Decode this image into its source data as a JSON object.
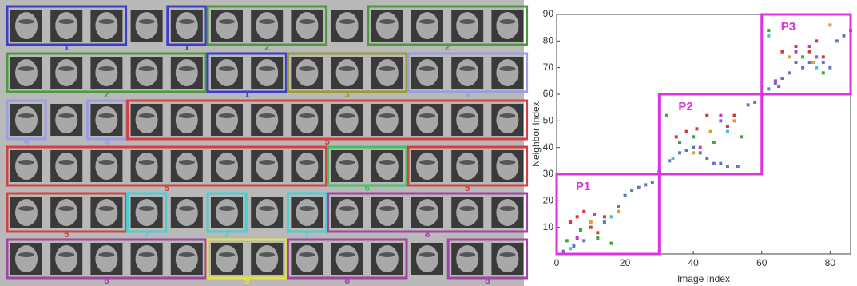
{
  "panel_a": {
    "rows": [
      [
        {
          "size": 3,
          "label": "1",
          "color": "#3d3dcc"
        },
        {
          "size": 1
        },
        {
          "size": 1,
          "label": "1",
          "color": "#3d3dcc"
        },
        {
          "size": 3,
          "label": "2",
          "color": "#4c9a3c"
        },
        {
          "size": 1
        },
        {
          "size": 4,
          "label": "2",
          "color": "#4c9a3c"
        }
      ],
      [
        {
          "size": 5,
          "label": "2",
          "color": "#4c9a3c"
        },
        {
          "size": 2,
          "label": "1",
          "color": "#3d3dcc"
        },
        {
          "size": 3,
          "label": "3",
          "color": "#9c9a32"
        },
        {
          "size": 3,
          "label": "4",
          "color": "#9c9ce2"
        }
      ],
      [
        {
          "size": 1,
          "label": "4",
          "color": "#9c9ce2"
        },
        {
          "size": 1
        },
        {
          "size": 1,
          "label": "4",
          "color": "#9c9ce2"
        },
        {
          "size": 10,
          "label": "5",
          "color": "#d24242"
        }
      ],
      [
        {
          "size": 8,
          "label": "5",
          "color": "#d24242"
        },
        {
          "size": 2,
          "label": "6",
          "color": "#44c262"
        },
        {
          "size": 3,
          "label": "5",
          "color": "#d24242"
        }
      ],
      [
        {
          "size": 3,
          "label": "5",
          "color": "#d24242"
        },
        {
          "size": 1,
          "label": "7",
          "color": "#44d2d2"
        },
        {
          "size": 1
        },
        {
          "size": 1,
          "label": "7",
          "color": "#44d2d2"
        },
        {
          "size": 1
        },
        {
          "size": 1,
          "label": "7",
          "color": "#44d2d2"
        },
        {
          "size": 5,
          "label": "8",
          "color": "#a244a2"
        }
      ],
      [
        {
          "size": 5,
          "label": "8",
          "color": "#a244a2"
        },
        {
          "size": 2,
          "label": "9",
          "color": "#e2e244"
        },
        {
          "size": 3,
          "label": "8",
          "color": "#a244a2"
        },
        {
          "size": 1
        },
        {
          "size": 2,
          "label": "8",
          "color": "#a244a2"
        }
      ]
    ]
  },
  "chart_data": {
    "type": "scatter",
    "x_label": "Image Index",
    "y_label": "Neighbor Index",
    "xlim": [
      0,
      86
    ],
    "ylim": [
      0,
      90
    ],
    "xticks": [
      0,
      20,
      40,
      60,
      80
    ],
    "yticks": [
      10,
      20,
      30,
      40,
      50,
      60,
      70,
      80,
      90
    ],
    "region_color": "#e033e0",
    "regions": [
      {
        "label": "P1",
        "x": [
          0,
          30
        ],
        "y": [
          0,
          30
        ]
      },
      {
        "label": "P2",
        "x": [
          30,
          60
        ],
        "y": [
          30,
          60
        ]
      },
      {
        "label": "P3",
        "x": [
          60,
          86
        ],
        "y": [
          60,
          90
        ]
      }
    ],
    "series": [
      {
        "color": "#5a7ac8",
        "x": [
          2,
          5,
          8,
          14,
          18,
          20,
          22,
          24,
          26,
          28,
          30,
          33,
          36,
          38,
          40,
          42,
          44,
          46,
          48,
          50,
          53,
          56,
          58,
          60,
          62,
          64,
          66,
          68,
          70,
          72,
          74,
          76,
          78,
          80,
          82,
          84,
          86,
          48,
          52
        ],
        "values": [
          1,
          3,
          5,
          12,
          18,
          22,
          24,
          25,
          26,
          27,
          31,
          35,
          38,
          39,
          40,
          38,
          36,
          34,
          34,
          33,
          33,
          56,
          57,
          60,
          62,
          64,
          66,
          68,
          72,
          70,
          72,
          74,
          72,
          70,
          80,
          82,
          84,
          50,
          52
        ]
      },
      {
        "color": "#d83a3a",
        "x": [
          4,
          6,
          8,
          10,
          12,
          14,
          35,
          38,
          41,
          44,
          50,
          52,
          66,
          70,
          74,
          76,
          78
        ],
        "values": [
          12,
          14,
          16,
          10,
          8,
          14,
          44,
          46,
          47,
          52,
          48,
          52,
          76,
          78,
          76,
          80,
          74
        ]
      },
      {
        "color": "#3aa83a",
        "x": [
          3,
          7,
          12,
          16,
          32,
          36,
          40,
          46,
          54,
          62,
          72,
          78
        ],
        "values": [
          5,
          9,
          6,
          4,
          52,
          42,
          44,
          42,
          44,
          84,
          74,
          68
        ]
      },
      {
        "color": "#e89a2a",
        "x": [
          10,
          18,
          40,
          45,
          52,
          68,
          75,
          80
        ],
        "values": [
          12,
          16,
          38,
          46,
          50,
          74,
          72,
          86
        ]
      },
      {
        "color": "#c83ac8",
        "x": [
          6,
          11,
          42,
          48,
          70,
          74,
          64,
          65
        ],
        "values": [
          6,
          15,
          40,
          52,
          76,
          78,
          65,
          63
        ]
      },
      {
        "color": "#3ac8c8",
        "x": [
          4,
          16,
          34,
          50,
          62,
          76
        ],
        "values": [
          2,
          14,
          36,
          46,
          82,
          70
        ]
      }
    ]
  }
}
